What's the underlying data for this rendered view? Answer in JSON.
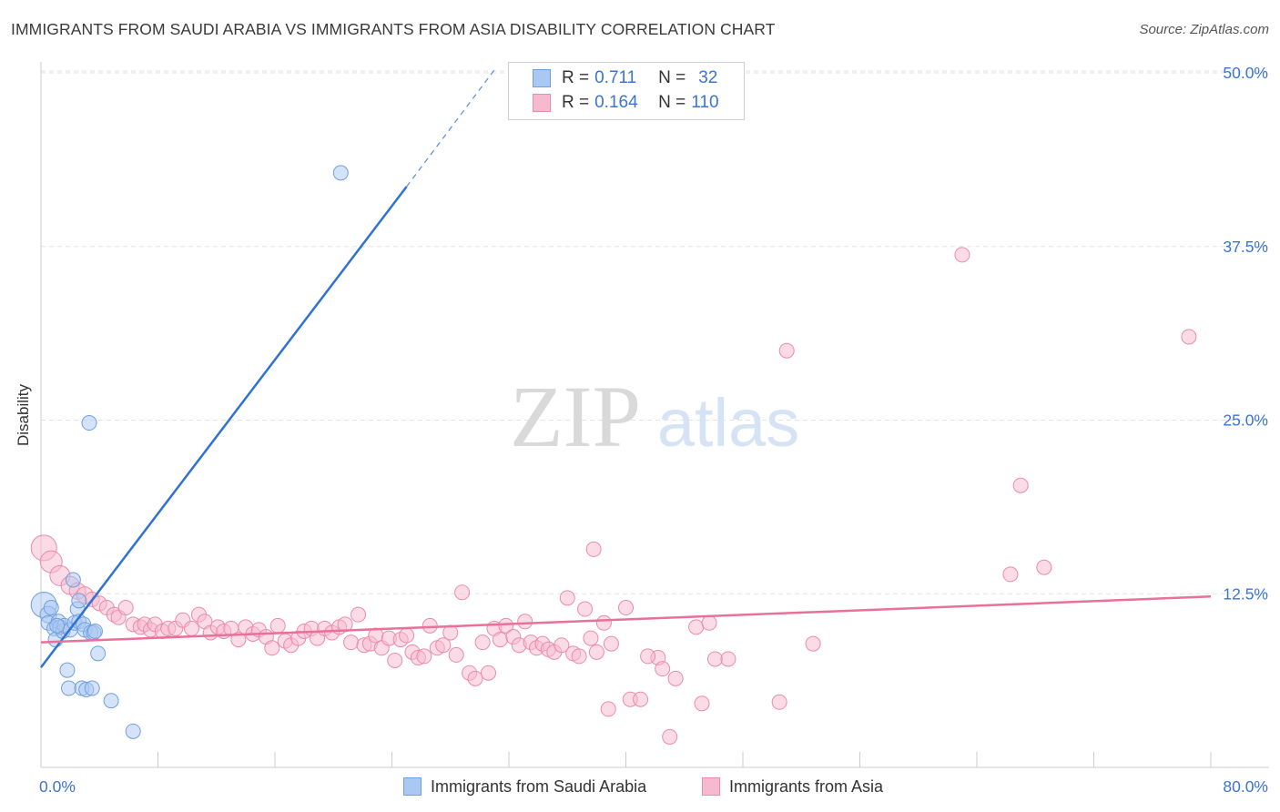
{
  "header": {
    "title": "IMMIGRANTS FROM SAUDI ARABIA VS IMMIGRANTS FROM ASIA DISABILITY CORRELATION CHART",
    "source": "Source: ZipAtlas.com"
  },
  "watermark": {
    "zip": "ZIP",
    "atlas": "atlas"
  },
  "legend": {
    "rows": [
      {
        "r_label": "R =",
        "r_value": "0.711",
        "n_label": "N =",
        "n_value": "32",
        "color": "#a9c8f2",
        "border": "#6f9fe0"
      },
      {
        "r_label": "R =",
        "r_value": "0.164",
        "n_label": "N =",
        "n_value": "110",
        "color": "#f7b9cd",
        "border": "#ec8aab"
      }
    ]
  },
  "bottom_legend": {
    "series1": "Immigrants from Saudi Arabia",
    "series2": "Immigrants from Asia"
  },
  "chart_data": {
    "type": "scatter",
    "title": "IMMIGRANTS FROM SAUDI ARABIA VS IMMIGRANTS FROM ASIA DISABILITY CORRELATION CHART",
    "xlabel": "",
    "ylabel": "Disability",
    "xlim": [
      0,
      80
    ],
    "ylim": [
      0,
      50
    ],
    "x_tick_labels": [
      "0.0%",
      "80.0%"
    ],
    "y_tick_labels": [
      "12.5%",
      "25.0%",
      "37.5%",
      "50.0%"
    ],
    "y_ticks": [
      12.5,
      25.0,
      37.5,
      50.0
    ],
    "x_minor_ticks": [
      0,
      8,
      16,
      24,
      32,
      40,
      48,
      56,
      64,
      72,
      80
    ],
    "grid": true,
    "series": [
      {
        "name": "Immigrants from Saudi Arabia",
        "color": "#6f9fe0",
        "fill": "#a9c8f2",
        "line_color": "#2f72d4",
        "trend": {
          "x0": 0,
          "y0": 7.2,
          "x1": 25,
          "y1": 41.8,
          "dash_to_x": 31,
          "dash_to_y": 50.2
        },
        "points": [
          [
            0.2,
            11.7,
            14
          ],
          [
            0.5,
            11.0,
            9
          ],
          [
            0.5,
            10.4,
            8
          ],
          [
            0.7,
            11.5,
            8
          ],
          [
            0.9,
            10.0,
            8
          ],
          [
            1.0,
            9.2,
            8
          ],
          [
            1.2,
            10.5,
            8
          ],
          [
            1.3,
            10.1,
            8
          ],
          [
            1.5,
            9.8,
            8
          ],
          [
            1.6,
            10.2,
            8
          ],
          [
            1.8,
            7.0,
            8
          ],
          [
            1.9,
            5.7,
            8
          ],
          [
            2.0,
            9.9,
            8
          ],
          [
            2.2,
            13.5,
            8
          ],
          [
            2.3,
            10.4,
            8
          ],
          [
            2.5,
            11.4,
            8
          ],
          [
            2.6,
            12.0,
            8
          ],
          [
            2.6,
            10.5,
            8
          ],
          [
            2.8,
            5.7,
            8
          ],
          [
            2.9,
            10.3,
            8
          ],
          [
            3.0,
            9.9,
            8
          ],
          [
            3.1,
            5.6,
            8
          ],
          [
            3.4,
            9.7,
            8
          ],
          [
            3.3,
            24.8,
            8
          ],
          [
            3.6,
            9.7,
            8
          ],
          [
            3.5,
            5.7,
            8
          ],
          [
            3.7,
            9.8,
            8
          ],
          [
            3.9,
            8.2,
            8
          ],
          [
            4.8,
            4.8,
            8
          ],
          [
            6.3,
            2.6,
            8
          ],
          [
            20.5,
            42.8,
            8
          ],
          [
            1.1,
            10.2,
            8
          ]
        ]
      },
      {
        "name": "Immigrants from Asia",
        "color": "#ec8aab",
        "fill": "#f7b9cd",
        "line_color": "#e8709a",
        "trend": {
          "x0": 0,
          "y0": 9.0,
          "x1": 80,
          "y1": 12.3
        },
        "points": [
          [
            0.2,
            15.8,
            14
          ],
          [
            0.7,
            14.8,
            12
          ],
          [
            1.3,
            13.8,
            11
          ],
          [
            2.0,
            13.1,
            10
          ],
          [
            2.5,
            12.7,
            9
          ],
          [
            3.0,
            12.4,
            9
          ],
          [
            3.5,
            12.1,
            8
          ],
          [
            4.0,
            11.8,
            8
          ],
          [
            4.5,
            11.5,
            8
          ],
          [
            5.0,
            11.0,
            8
          ],
          [
            5.3,
            10.8,
            8
          ],
          [
            5.8,
            11.5,
            8
          ],
          [
            6.3,
            10.3,
            8
          ],
          [
            6.8,
            10.1,
            8
          ],
          [
            7.1,
            10.3,
            8
          ],
          [
            7.5,
            9.9,
            8
          ],
          [
            7.8,
            10.3,
            8
          ],
          [
            8.3,
            9.8,
            8
          ],
          [
            8.7,
            10.0,
            8
          ],
          [
            9.2,
            10.0,
            8
          ],
          [
            9.7,
            10.6,
            8
          ],
          [
            10.3,
            10.0,
            8
          ],
          [
            10.8,
            11.0,
            8
          ],
          [
            11.2,
            10.5,
            8
          ],
          [
            11.6,
            9.7,
            8
          ],
          [
            12.1,
            10.1,
            8
          ],
          [
            12.5,
            9.8,
            8
          ],
          [
            13.0,
            10.0,
            8
          ],
          [
            13.5,
            9.2,
            8
          ],
          [
            14.0,
            10.1,
            8
          ],
          [
            14.5,
            9.6,
            8
          ],
          [
            14.9,
            9.9,
            8
          ],
          [
            15.4,
            9.4,
            8
          ],
          [
            15.8,
            8.6,
            8
          ],
          [
            16.2,
            10.2,
            8
          ],
          [
            16.7,
            9.1,
            8
          ],
          [
            17.1,
            8.8,
            8
          ],
          [
            17.6,
            9.3,
            8
          ],
          [
            18.0,
            9.8,
            8
          ],
          [
            18.5,
            10.0,
            8
          ],
          [
            18.9,
            9.3,
            8
          ],
          [
            19.4,
            10.0,
            8
          ],
          [
            19.9,
            9.7,
            8
          ],
          [
            20.4,
            10.1,
            8
          ],
          [
            20.8,
            10.3,
            8
          ],
          [
            21.2,
            9.0,
            8
          ],
          [
            21.7,
            11.0,
            8
          ],
          [
            22.1,
            8.8,
            8
          ],
          [
            22.5,
            8.9,
            8
          ],
          [
            22.9,
            9.5,
            8
          ],
          [
            23.3,
            8.6,
            8
          ],
          [
            23.8,
            9.3,
            8
          ],
          [
            24.2,
            7.7,
            8
          ],
          [
            24.6,
            9.2,
            8
          ],
          [
            25.0,
            9.5,
            8
          ],
          [
            25.4,
            8.3,
            8
          ],
          [
            25.8,
            7.9,
            8
          ],
          [
            26.2,
            8.0,
            8
          ],
          [
            26.6,
            10.2,
            8
          ],
          [
            27.1,
            8.6,
            8
          ],
          [
            27.5,
            8.8,
            8
          ],
          [
            28.0,
            9.7,
            8
          ],
          [
            28.4,
            8.1,
            8
          ],
          [
            28.8,
            12.6,
            8
          ],
          [
            29.3,
            6.8,
            8
          ],
          [
            29.7,
            6.4,
            8
          ],
          [
            30.2,
            9.0,
            8
          ],
          [
            30.6,
            6.8,
            8
          ],
          [
            31.0,
            10.0,
            8
          ],
          [
            31.4,
            9.2,
            8
          ],
          [
            31.8,
            10.2,
            8
          ],
          [
            32.3,
            9.4,
            8
          ],
          [
            32.7,
            8.8,
            8
          ],
          [
            33.1,
            10.5,
            8
          ],
          [
            33.5,
            9.0,
            8
          ],
          [
            33.9,
            8.6,
            8
          ],
          [
            34.3,
            8.9,
            8
          ],
          [
            34.7,
            8.5,
            8
          ],
          [
            35.1,
            8.3,
            8
          ],
          [
            35.6,
            8.8,
            8
          ],
          [
            36.0,
            12.2,
            8
          ],
          [
            36.4,
            8.2,
            8
          ],
          [
            36.8,
            8.0,
            8
          ],
          [
            37.2,
            11.4,
            8
          ],
          [
            37.6,
            9.3,
            8
          ],
          [
            38.0,
            8.3,
            8
          ],
          [
            38.5,
            10.4,
            8
          ],
          [
            38.8,
            4.2,
            8
          ],
          [
            39.0,
            8.9,
            8
          ],
          [
            40.0,
            11.5,
            8
          ],
          [
            40.3,
            4.9,
            8
          ],
          [
            41.0,
            4.9,
            8
          ],
          [
            42.2,
            7.9,
            8
          ],
          [
            42.5,
            7.1,
            8
          ],
          [
            43.4,
            6.4,
            8
          ],
          [
            45.2,
            4.6,
            8
          ],
          [
            46.1,
            7.8,
            8
          ],
          [
            47.0,
            7.8,
            8
          ],
          [
            43.0,
            2.2,
            8
          ],
          [
            41.5,
            8.0,
            8
          ],
          [
            37.8,
            15.7,
            8
          ],
          [
            44.8,
            10.1,
            8
          ],
          [
            45.7,
            10.4,
            8
          ],
          [
            50.5,
            4.7,
            8
          ],
          [
            51.0,
            30.0,
            8
          ],
          [
            52.8,
            8.9,
            8
          ],
          [
            63.0,
            36.9,
            8
          ],
          [
            67.0,
            20.3,
            8
          ],
          [
            66.3,
            13.9,
            8
          ],
          [
            68.6,
            14.4,
            8
          ],
          [
            78.5,
            31.0,
            8
          ]
        ]
      }
    ]
  }
}
